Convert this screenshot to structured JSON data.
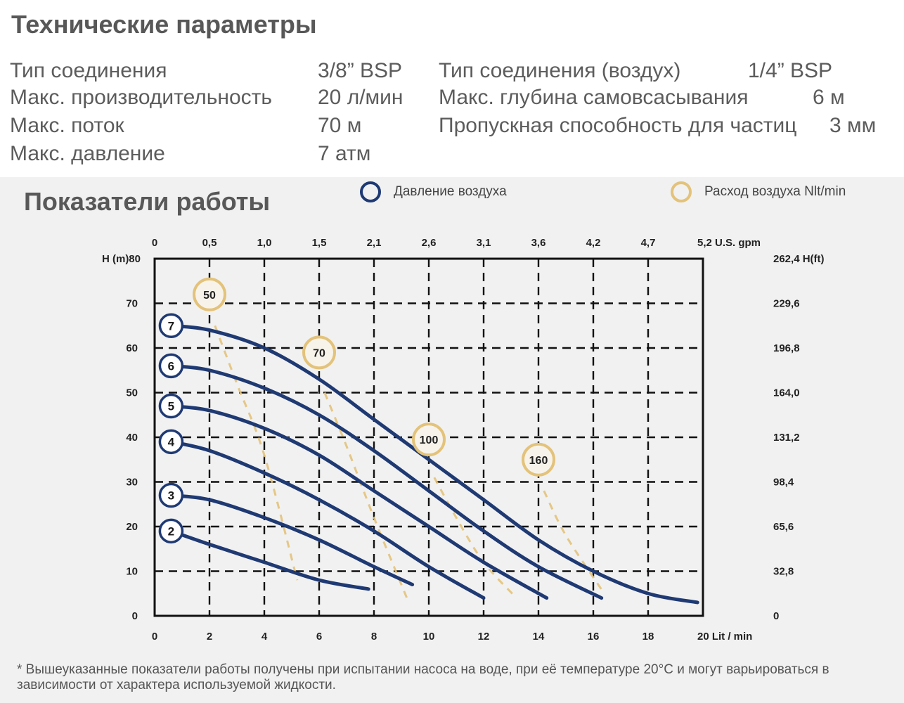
{
  "specs": {
    "title": "Технические параметры",
    "left": [
      {
        "label": "Тип соединения",
        "value": "3/8” BSP"
      },
      {
        "label": "Макс. производительность",
        "value": "20  л/мин"
      },
      {
        "label": "Макс. поток",
        "value": "70 м"
      },
      {
        "label": "Макс. давление",
        "value": "7 атм"
      }
    ],
    "right": [
      {
        "label": "Тип соединения (воздух)",
        "value": "1/4” BSP"
      },
      {
        "label": "Макс. глубина самовсасывания",
        "value": "6 м"
      },
      {
        "label": "Пропускная способность для частиц",
        "value": "3 мм"
      }
    ]
  },
  "performance": {
    "title": "Показатели работы",
    "legend": {
      "pressure": "Давление воздуха",
      "air_flow": "Расход воздуха Nlt/min"
    },
    "note": "* Вышеуказанные показатели работы получены при испытании насоса на воде, при её температуре 20°С и могут варьироваться в зависимости от характера используемой жидкости."
  },
  "colors": {
    "pressure": "#1f3a73",
    "air_flow": "#e3c27a",
    "grid": "#111111",
    "background": "#f1f1f1"
  },
  "chart_data": {
    "type": "line",
    "xlabel": "Lit / min",
    "ylabel": "H (m)",
    "y2label": "H(ft)",
    "x2label": "U.S. gpm",
    "xlim": [
      0,
      20
    ],
    "ylim": [
      0,
      80
    ],
    "grid": true,
    "x_ticks": [
      "0",
      "2",
      "4",
      "6",
      "8",
      "10",
      "12",
      "14",
      "16",
      "18",
      "20"
    ],
    "y_ticks": [
      "0",
      "10",
      "20",
      "30",
      "40",
      "50",
      "60",
      "70",
      "80"
    ],
    "x2_ticks": [
      "0",
      "0,5",
      "1,0",
      "1,5",
      "2,1",
      "2,6",
      "3,1",
      "3,6",
      "4,2",
      "4,7",
      "5,2"
    ],
    "y2_ticks": [
      "0",
      "32,8",
      "65,6",
      "98,4",
      "131,2",
      "164,0",
      "196,8",
      "229,6",
      "262,4"
    ],
    "series": [
      {
        "name": "2",
        "x": [
          0.6,
          2,
          4,
          6,
          7.8
        ],
        "y": [
          19,
          16,
          12,
          8,
          6
        ]
      },
      {
        "name": "3",
        "x": [
          0.6,
          2,
          4,
          6,
          8,
          9.4
        ],
        "y": [
          27,
          26,
          22,
          17,
          11,
          7
        ]
      },
      {
        "name": "4",
        "x": [
          0.6,
          2,
          4,
          6,
          8,
          10,
          12
        ],
        "y": [
          39,
          37,
          32,
          26,
          19,
          11,
          4
        ]
      },
      {
        "name": "5",
        "x": [
          0.6,
          2,
          4,
          6,
          8,
          10,
          12,
          14.3
        ],
        "y": [
          47,
          46,
          42,
          36,
          28,
          20,
          12,
          4
        ]
      },
      {
        "name": "6",
        "x": [
          0.6,
          2,
          4,
          6,
          8,
          10,
          12,
          14,
          16.3
        ],
        "y": [
          56,
          55,
          51,
          45,
          37,
          28,
          19,
          11,
          4
        ]
      },
      {
        "name": "7",
        "x": [
          0.6,
          2,
          4,
          6,
          8,
          10,
          12,
          14,
          16,
          18,
          19.8
        ],
        "y": [
          65,
          64,
          60,
          53,
          44,
          35,
          26,
          17,
          10,
          5,
          3
        ]
      }
    ],
    "air_flow": [
      {
        "label": "50",
        "x": [
          2.2,
          3,
          4,
          5.2
        ],
        "y": [
          65,
          52,
          36,
          8
        ]
      },
      {
        "label": "70",
        "x": [
          6.2,
          7,
          8,
          9.2
        ],
        "y": [
          50,
          38,
          22,
          4
        ]
      },
      {
        "label": "100",
        "x": [
          10.2,
          11,
          12,
          13.2
        ],
        "y": [
          31,
          22,
          12,
          4
        ]
      },
      {
        "label": "160",
        "x": [
          14.2,
          15,
          16.4
        ],
        "y": [
          28,
          18,
          5
        ]
      }
    ],
    "flow_markers": [
      {
        "label": "50",
        "x": 2,
        "y": 72
      },
      {
        "label": "70",
        "x": 6,
        "y": 59
      },
      {
        "label": "100",
        "x": 10,
        "y": 39.5
      },
      {
        "label": "160",
        "x": 14,
        "y": 35
      }
    ],
    "pressure_markers": [
      {
        "label": "7",
        "x": 0.6,
        "y": 65
      },
      {
        "label": "6",
        "x": 0.6,
        "y": 56
      },
      {
        "label": "5",
        "x": 0.6,
        "y": 47
      },
      {
        "label": "4",
        "x": 0.6,
        "y": 39
      },
      {
        "label": "3",
        "x": 0.6,
        "y": 27
      },
      {
        "label": "2",
        "x": 0.6,
        "y": 19
      }
    ]
  }
}
